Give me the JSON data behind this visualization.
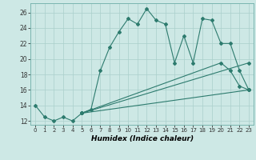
{
  "xlabel": "Humidex (Indice chaleur)",
  "bg_color": "#cde8e5",
  "line_color": "#2d7b6e",
  "grid_color": "#aacfcb",
  "xlim": [
    -0.5,
    23.5
  ],
  "ylim": [
    11.5,
    27.2
  ],
  "xticks": [
    0,
    1,
    2,
    3,
    4,
    5,
    6,
    7,
    8,
    9,
    10,
    11,
    12,
    13,
    14,
    15,
    16,
    17,
    18,
    19,
    20,
    21,
    22,
    23
  ],
  "yticks": [
    12,
    14,
    16,
    18,
    20,
    22,
    24,
    26
  ],
  "lines": [
    {
      "x": [
        0,
        1,
        2,
        3,
        4,
        5,
        6,
        7,
        8,
        9,
        10,
        11,
        12,
        13,
        14,
        15,
        16,
        17,
        18,
        19,
        20,
        21,
        22,
        23
      ],
      "y": [
        14,
        12.5,
        12,
        12.5,
        12,
        13,
        13.5,
        18.5,
        21.5,
        23.5,
        25.2,
        24.5,
        26.5,
        25,
        24.5,
        19.5,
        23,
        19.5,
        25.2,
        25,
        22,
        22,
        18.5,
        16
      ]
    },
    {
      "x": [
        5,
        23
      ],
      "y": [
        13,
        16
      ]
    },
    {
      "x": [
        5,
        23
      ],
      "y": [
        13,
        19.5
      ]
    },
    {
      "x": [
        5,
        20,
        21,
        22,
        23
      ],
      "y": [
        13,
        19.5,
        18.5,
        16.5,
        16
      ]
    }
  ]
}
